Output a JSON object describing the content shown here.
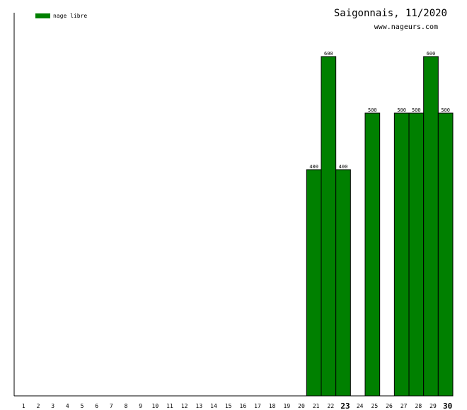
{
  "title": "Saigonnais, 11/2020",
  "site": "www.nageurs.com",
  "colors": {
    "bar": "#008000",
    "bar_stroke": "#000000",
    "axis": "#000000"
  },
  "chart_data": {
    "type": "bar",
    "categories": [
      "1",
      "2",
      "3",
      "4",
      "5",
      "6",
      "7",
      "8",
      "9",
      "10",
      "11",
      "12",
      "13",
      "14",
      "15",
      "16",
      "17",
      "18",
      "19",
      "20",
      "21",
      "22",
      "23",
      "24",
      "25",
      "26",
      "27",
      "28",
      "29",
      "30"
    ],
    "highlighted_categories": [
      "23",
      "30"
    ],
    "series": [
      {
        "name": "nage libre",
        "values": [
          0,
          0,
          0,
          0,
          0,
          0,
          0,
          0,
          0,
          0,
          0,
          0,
          0,
          0,
          0,
          0,
          0,
          0,
          0,
          0,
          400,
          600,
          400,
          0,
          500,
          0,
          500,
          500,
          600,
          500
        ]
      }
    ],
    "ylim": [
      0,
      600
    ],
    "legend_position": "top-left",
    "grid": false
  }
}
